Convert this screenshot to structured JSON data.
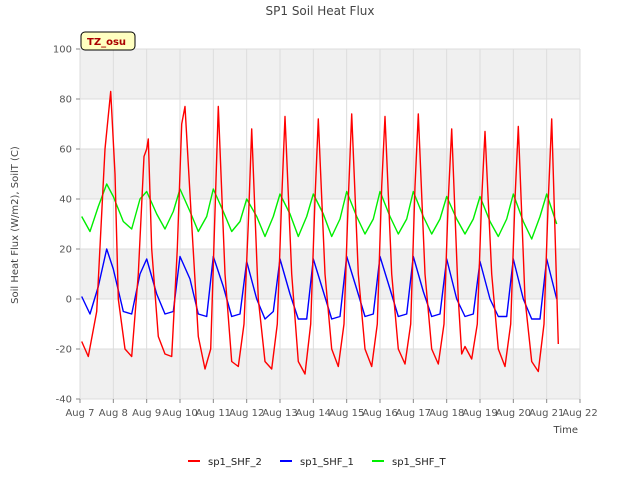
{
  "chart_data": {
    "type": "line",
    "title": "SP1 Soil Heat Flux",
    "xlabel": "Time",
    "ylabel": "Soil Heat Flux (W/m2), SoilT (C)",
    "tag": "TZ_osu",
    "xlim": [
      7,
      22
    ],
    "ylim": [
      -40,
      100
    ],
    "x_ticks": [
      "Aug 7",
      "Aug 8",
      "Aug 9",
      "Aug 10",
      "Aug 11",
      "Aug 12",
      "Aug 13",
      "Aug 14",
      "Aug 15",
      "Aug 16",
      "Aug 17",
      "Aug 18",
      "Aug 19",
      "Aug 20",
      "Aug 21",
      "Aug 22"
    ],
    "y_ticks": [
      -40,
      -20,
      0,
      20,
      40,
      60,
      80,
      100
    ],
    "grid": true,
    "legend_position": "bottom",
    "series": [
      {
        "name": "sp1_SHF_2",
        "color": "#ff0000",
        "x": [
          7.05,
          7.25,
          7.5,
          7.75,
          7.92,
          8.05,
          8.15,
          8.35,
          8.55,
          8.75,
          8.92,
          9.0,
          9.05,
          9.15,
          9.35,
          9.55,
          9.75,
          9.92,
          10.05,
          10.15,
          10.35,
          10.55,
          10.75,
          10.92,
          11.05,
          11.15,
          11.35,
          11.55,
          11.75,
          11.92,
          12.05,
          12.15,
          12.35,
          12.55,
          12.75,
          12.92,
          13.05,
          13.15,
          13.35,
          13.55,
          13.75,
          13.92,
          14.05,
          14.15,
          14.35,
          14.55,
          14.75,
          14.92,
          15.05,
          15.15,
          15.35,
          15.55,
          15.75,
          15.92,
          16.05,
          16.15,
          16.35,
          16.55,
          16.75,
          16.92,
          17.05,
          17.15,
          17.35,
          17.55,
          17.75,
          17.92,
          18.05,
          18.15,
          18.35,
          18.45,
          18.55,
          18.75,
          18.92,
          19.05,
          19.15,
          19.35,
          19.55,
          19.75,
          19.92,
          20.05,
          20.15,
          20.35,
          20.55,
          20.75,
          20.92,
          21.05,
          21.15,
          21.35
        ],
        "y": [
          -17,
          -23,
          -5,
          60,
          83,
          50,
          0,
          -20,
          -23,
          10,
          57,
          60,
          64,
          20,
          -15,
          -22,
          -23,
          20,
          70,
          77,
          30,
          -15,
          -28,
          -20,
          35,
          77,
          10,
          -25,
          -27,
          -10,
          30,
          68,
          0,
          -25,
          -28,
          -10,
          40,
          73,
          10,
          -25,
          -30,
          -10,
          40,
          72,
          10,
          -20,
          -27,
          -10,
          40,
          74,
          10,
          -20,
          -27,
          -10,
          45,
          73,
          10,
          -20,
          -26,
          -10,
          45,
          74,
          10,
          -20,
          -26,
          -10,
          40,
          68,
          0,
          -22,
          -19,
          -24,
          -10,
          40,
          67,
          10,
          -20,
          -27,
          -10,
          40,
          69,
          0,
          -25,
          -29,
          -10,
          40,
          72,
          -18
        ]
      },
      {
        "name": "sp1_SHF_1",
        "color": "#0000ff",
        "x": [
          7.05,
          7.3,
          7.55,
          7.8,
          8.0,
          8.3,
          8.55,
          8.8,
          9.0,
          9.3,
          9.55,
          9.8,
          10.0,
          10.3,
          10.55,
          10.8,
          11.0,
          11.3,
          11.55,
          11.8,
          12.0,
          12.3,
          12.55,
          12.8,
          13.0,
          13.3,
          13.55,
          13.8,
          14.0,
          14.3,
          14.55,
          14.8,
          15.0,
          15.3,
          15.55,
          15.8,
          16.0,
          16.3,
          16.55,
          16.8,
          17.0,
          17.3,
          17.55,
          17.8,
          18.0,
          18.3,
          18.55,
          18.8,
          19.0,
          19.3,
          19.55,
          19.8,
          20.0,
          20.3,
          20.55,
          20.8,
          21.0,
          21.3
        ],
        "y": [
          1,
          -6,
          5,
          20,
          12,
          -5,
          -6,
          10,
          16,
          2,
          -6,
          -5,
          17,
          8,
          -6,
          -7,
          17,
          5,
          -7,
          -6,
          15,
          0,
          -8,
          -5,
          16,
          2,
          -8,
          -8,
          16,
          3,
          -8,
          -7,
          17,
          4,
          -7,
          -6,
          17,
          4,
          -7,
          -6,
          17,
          3,
          -7,
          -6,
          16,
          0,
          -7,
          -6,
          15,
          0,
          -7,
          -7,
          16,
          0,
          -8,
          -8,
          16,
          0
        ]
      },
      {
        "name": "sp1_SHF_T",
        "color": "#00ee00",
        "x": [
          7.05,
          7.3,
          7.55,
          7.8,
          8.0,
          8.3,
          8.55,
          8.8,
          9.0,
          9.3,
          9.55,
          9.8,
          10.0,
          10.3,
          10.55,
          10.8,
          11.0,
          11.3,
          11.55,
          11.8,
          12.0,
          12.3,
          12.55,
          12.8,
          13.0,
          13.3,
          13.55,
          13.8,
          14.0,
          14.3,
          14.55,
          14.8,
          15.0,
          15.3,
          15.55,
          15.8,
          16.0,
          16.3,
          16.55,
          16.8,
          17.0,
          17.3,
          17.55,
          17.8,
          18.0,
          18.3,
          18.55,
          18.8,
          19.0,
          19.3,
          19.55,
          19.8,
          20.0,
          20.3,
          20.55,
          20.8,
          21.0,
          21.3
        ],
        "y": [
          33,
          27,
          37,
          46,
          41,
          31,
          28,
          40,
          43,
          34,
          28,
          35,
          44,
          35,
          27,
          33,
          44,
          35,
          27,
          31,
          40,
          33,
          25,
          33,
          42,
          34,
          25,
          33,
          42,
          34,
          25,
          32,
          43,
          33,
          26,
          32,
          43,
          33,
          26,
          32,
          43,
          33,
          26,
          32,
          41,
          32,
          26,
          32,
          41,
          31,
          25,
          32,
          42,
          31,
          24,
          33,
          42,
          30
        ]
      }
    ]
  }
}
